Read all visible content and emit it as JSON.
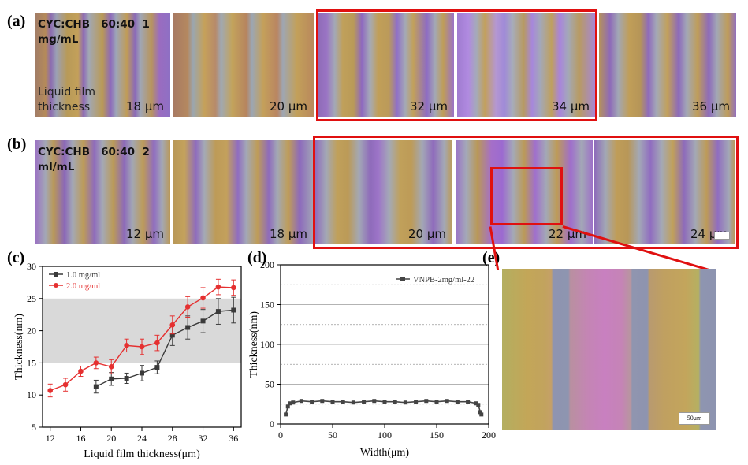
{
  "panels": {
    "a": "(a)",
    "b": "(b)",
    "c": "(c)",
    "d": "(d)",
    "e": "(e)"
  },
  "row_a": {
    "condition": "CYC:CHB   60:40  1\nmg/mL",
    "liquid_label": "Liquid film\nthickness",
    "tiles": [
      "18 μm",
      "20 μm",
      "32 μm",
      "34 μm",
      "36 μm"
    ]
  },
  "row_b": {
    "condition": "CYC:CHB   60:40  2\nml/mL",
    "tiles": [
      "12 μm",
      "18 μm",
      "20 μm",
      "22 μm",
      "24 μm"
    ]
  },
  "chart_data": [
    {
      "type": "line",
      "panel": "c",
      "xlabel": "Liquid film thickness(μm)",
      "ylabel": "Thickness(nm)",
      "xlim": [
        11,
        37
      ],
      "ylim": [
        5,
        30
      ],
      "xticks": [
        12,
        16,
        20,
        24,
        28,
        32,
        36
      ],
      "yticks": [
        5,
        10,
        15,
        20,
        25,
        30
      ],
      "shaded_band": [
        15,
        25
      ],
      "series": [
        {
          "name": "1.0 mg/ml",
          "color": "#3a3a3a",
          "x": [
            18,
            20,
            22,
            24,
            26,
            28,
            30,
            32,
            34,
            36
          ],
          "y": [
            11.3,
            12.5,
            12.6,
            13.4,
            14.3,
            19.3,
            20.5,
            21.5,
            23.0,
            23.2
          ],
          "err": [
            1.0,
            1.0,
            0.8,
            1.2,
            1.0,
            1.6,
            1.8,
            1.8,
            2.0,
            2.0
          ]
        },
        {
          "name": "2.0 mg/ml",
          "color": "#e53030",
          "x": [
            12,
            14,
            16,
            18,
            20,
            22,
            24,
            26,
            28,
            30,
            32,
            34,
            36
          ],
          "y": [
            10.7,
            11.6,
            13.7,
            15.0,
            14.4,
            17.7,
            17.5,
            18.1,
            20.9,
            23.7,
            25.1,
            26.8,
            26.7
          ],
          "err": [
            1.0,
            1.0,
            0.8,
            0.9,
            1.1,
            1.0,
            1.2,
            1.2,
            1.4,
            1.6,
            1.6,
            1.2,
            1.2
          ]
        }
      ]
    },
    {
      "type": "line",
      "panel": "d",
      "xlabel": "Width(μm)",
      "ylabel": "Thickness(nm)",
      "xlim": [
        0,
        200
      ],
      "ylim": [
        0,
        200
      ],
      "xticks": [
        0,
        50,
        100,
        150,
        200
      ],
      "yticks": [
        0,
        50,
        100,
        150,
        200
      ],
      "series": [
        {
          "name": "VNPB-2mg/ml-22",
          "color": "#444444",
          "x": [
            5,
            7,
            9,
            12,
            20,
            30,
            40,
            50,
            60,
            70,
            80,
            90,
            100,
            110,
            120,
            130,
            140,
            150,
            160,
            170,
            180,
            188,
            190,
            192,
            193
          ],
          "y": [
            12,
            22,
            26,
            27,
            29,
            28,
            29,
            28,
            28,
            27,
            28,
            29,
            28,
            28,
            27,
            28,
            29,
            28,
            29,
            28,
            28,
            26,
            24,
            15,
            12
          ]
        }
      ]
    }
  ],
  "panel_e": {
    "scale_label": "50μm"
  },
  "colors": {
    "red": "#e01010"
  }
}
